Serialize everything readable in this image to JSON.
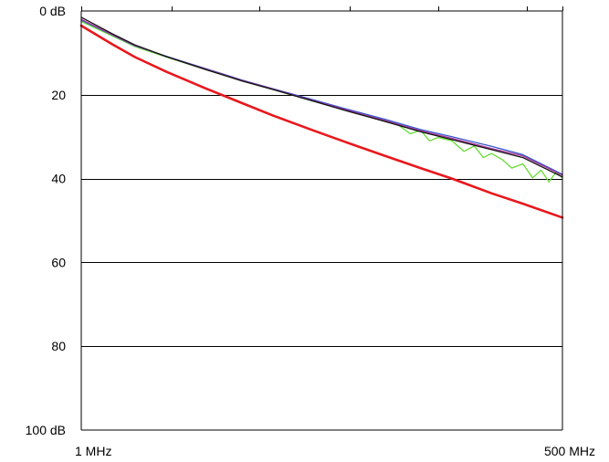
{
  "chart_data": {
    "type": "line",
    "title": "",
    "xlabel": "",
    "ylabel": "",
    "x_scale": "log",
    "x_range_mhz": [
      1,
      500
    ],
    "y_reversed": true,
    "ylim": [
      0,
      100
    ],
    "grid": {
      "horizontal": true,
      "vertical": false
    },
    "y_ticks": [
      {
        "value": 0,
        "label": "0 dB"
      },
      {
        "value": 20,
        "label": "20"
      },
      {
        "value": 40,
        "label": "40"
      },
      {
        "value": 60,
        "label": "60"
      },
      {
        "value": 80,
        "label": "80"
      },
      {
        "value": 100,
        "label": "100 dB"
      }
    ],
    "x_tick_labels": [
      {
        "value": 1,
        "label": "1 MHz",
        "anchor": "start"
      },
      {
        "value": 500,
        "label": "500 MHz",
        "anchor": "end"
      }
    ],
    "x_top_ticks": [
      1,
      3.2,
      10,
      32,
      100,
      316,
      500
    ],
    "series": [
      {
        "color": "#e8181d",
        "x": [
          1,
          1.5,
          2,
          3,
          5,
          8,
          12,
          20,
          30,
          50,
          80,
          120,
          200,
          300,
          500
        ],
        "values": [
          3.5,
          8.0,
          11.0,
          14.5,
          18.5,
          22.0,
          25.0,
          28.5,
          31.2,
          34.5,
          37.5,
          40.0,
          43.5,
          46.0,
          49.3
        ]
      },
      {
        "color": "#66dd33",
        "x": [
          1,
          1.5,
          2,
          3,
          5,
          8,
          12,
          20,
          30,
          40,
          50,
          60,
          70,
          80,
          90,
          100,
          120,
          140,
          160,
          180,
          200,
          230,
          260,
          300,
          340,
          380,
          420,
          460,
          500
        ],
        "values": [
          2.5,
          6.0,
          8.5,
          11.0,
          14.0,
          16.7,
          18.8,
          21.5,
          23.6,
          25.0,
          26.3,
          27.2,
          29.3,
          28.5,
          31.0,
          30.2,
          31.0,
          33.5,
          32.2,
          35.0,
          34.0,
          35.5,
          37.5,
          36.5,
          39.8,
          38.0,
          40.8,
          38.5,
          39.8
        ]
      },
      {
        "color": "#3355cc",
        "x": [
          1,
          1.5,
          2,
          3,
          5,
          8,
          12,
          20,
          30,
          50,
          80,
          120,
          200,
          300,
          500
        ],
        "values": [
          2.2,
          5.8,
          8.3,
          10.8,
          13.8,
          16.5,
          18.6,
          21.2,
          23.3,
          25.8,
          28.3,
          30.0,
          32.3,
          34.3,
          39.0
        ]
      },
      {
        "color": "#aa3399",
        "x": [
          1,
          1.5,
          2,
          3,
          5,
          8,
          12,
          20,
          30,
          50,
          80,
          120,
          200,
          300,
          500
        ],
        "values": [
          2.0,
          5.7,
          8.2,
          10.9,
          13.9,
          16.6,
          18.7,
          21.4,
          23.5,
          26.1,
          28.6,
          30.4,
          32.8,
          34.6,
          39.2
        ]
      },
      {
        "color": "#111111",
        "x": [
          1,
          1.5,
          2,
          3,
          5,
          8,
          12,
          20,
          30,
          50,
          80,
          120,
          200,
          300,
          500
        ],
        "values": [
          1.5,
          5.5,
          8.1,
          10.9,
          14.0,
          16.7,
          18.8,
          21.5,
          23.7,
          26.3,
          28.8,
          30.7,
          33.1,
          35.0,
          39.6
        ]
      }
    ]
  }
}
